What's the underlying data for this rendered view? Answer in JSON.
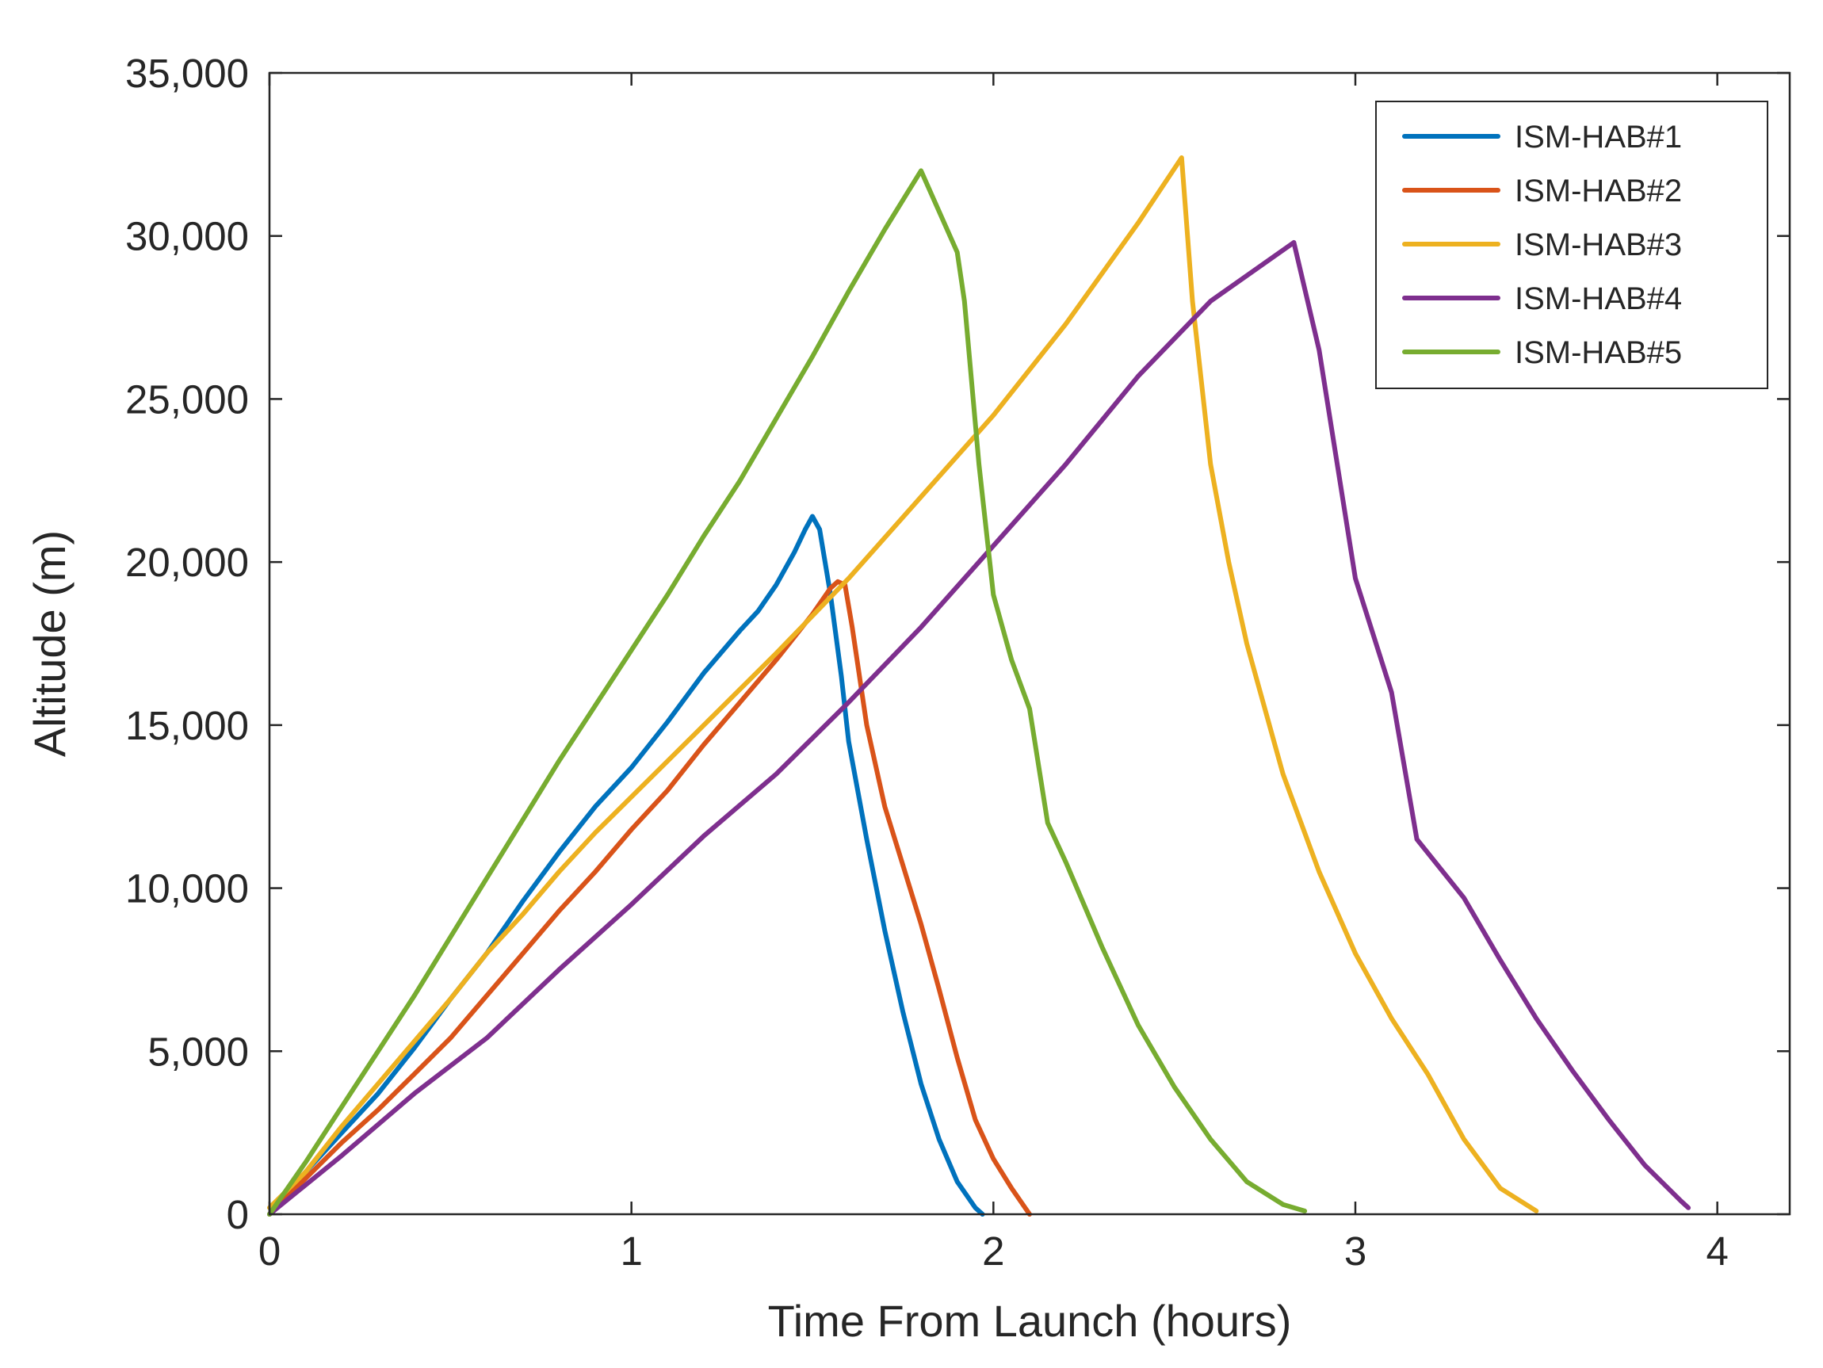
{
  "chart_data": {
    "type": "line",
    "title": "",
    "xlabel": "Time From Launch (hours)",
    "ylabel": "Altitude (m)",
    "xlim": [
      0,
      4.2
    ],
    "ylim": [
      0,
      35000
    ],
    "xticks": [
      0,
      1,
      2,
      3,
      4
    ],
    "xtick_labels": [
      "0",
      "1",
      "2",
      "3",
      "4"
    ],
    "yticks": [
      0,
      5000,
      10000,
      15000,
      20000,
      25000,
      30000,
      35000
    ],
    "ytick_labels": [
      "0",
      "5,000",
      "10,000",
      "15,000",
      "20,000",
      "25,000",
      "30,000",
      "35,000"
    ],
    "grid": false,
    "legend_position": "top-right",
    "series": [
      {
        "name": "ISM-HAB#1",
        "color": "#0072BD",
        "x": [
          0,
          0.1,
          0.2,
          0.3,
          0.4,
          0.5,
          0.6,
          0.7,
          0.8,
          0.9,
          1.0,
          1.1,
          1.2,
          1.3,
          1.35,
          1.4,
          1.45,
          1.48,
          1.5,
          1.52,
          1.55,
          1.58,
          1.6,
          1.65,
          1.7,
          1.75,
          1.8,
          1.85,
          1.9,
          1.95,
          1.97
        ],
        "y": [
          0,
          1300,
          2500,
          3700,
          5100,
          6600,
          8000,
          9600,
          11100,
          12500,
          13700,
          15100,
          16600,
          17900,
          18500,
          19300,
          20300,
          21000,
          21400,
          21000,
          19000,
          16500,
          14500,
          11500,
          8700,
          6200,
          4000,
          2300,
          1000,
          200,
          0
        ]
      },
      {
        "name": "ISM-HAB#2",
        "color": "#D95319",
        "x": [
          0,
          0.1,
          0.2,
          0.3,
          0.4,
          0.5,
          0.6,
          0.7,
          0.8,
          0.9,
          1.0,
          1.1,
          1.2,
          1.3,
          1.4,
          1.5,
          1.55,
          1.57,
          1.59,
          1.61,
          1.65,
          1.7,
          1.75,
          1.8,
          1.85,
          1.9,
          1.95,
          2.0,
          2.05,
          2.1
        ],
        "y": [
          0,
          1100,
          2200,
          3200,
          4300,
          5400,
          6700,
          8000,
          9300,
          10500,
          11800,
          13000,
          14400,
          15700,
          17000,
          18400,
          19200,
          19400,
          19300,
          18000,
          15000,
          12500,
          10700,
          8900,
          6900,
          4800,
          2900,
          1700,
          800,
          0
        ]
      },
      {
        "name": "ISM-HAB#3",
        "color": "#EDB120",
        "x": [
          0,
          0.1,
          0.2,
          0.3,
          0.4,
          0.5,
          0.6,
          0.7,
          0.8,
          0.9,
          1.0,
          1.2,
          1.4,
          1.6,
          1.8,
          2.0,
          2.2,
          2.4,
          2.52,
          2.55,
          2.6,
          2.65,
          2.7,
          2.8,
          2.9,
          3.0,
          3.1,
          3.2,
          3.3,
          3.4,
          3.5
        ],
        "y": [
          200,
          1300,
          2700,
          4000,
          5300,
          6600,
          8000,
          9200,
          10500,
          11700,
          12800,
          15000,
          17200,
          19500,
          22000,
          24500,
          27300,
          30400,
          32400,
          28000,
          23000,
          20000,
          17500,
          13500,
          10500,
          8000,
          6000,
          4300,
          2300,
          800,
          100
        ]
      },
      {
        "name": "ISM-HAB#4",
        "color": "#7E2F8E",
        "x": [
          0,
          0.2,
          0.4,
          0.6,
          0.8,
          1.0,
          1.2,
          1.4,
          1.6,
          1.8,
          2.0,
          2.2,
          2.4,
          2.6,
          2.83,
          2.9,
          3.0,
          3.1,
          3.17,
          3.3,
          3.4,
          3.5,
          3.6,
          3.7,
          3.8,
          3.9,
          3.92
        ],
        "y": [
          0,
          1800,
          3700,
          5400,
          7500,
          9500,
          11600,
          13500,
          15700,
          18000,
          20500,
          23000,
          25700,
          28000,
          29800,
          26500,
          19500,
          16000,
          11500,
          9700,
          7800,
          6000,
          4400,
          2900,
          1500,
          400,
          200
        ]
      },
      {
        "name": "ISM-HAB#5",
        "color": "#77AC30",
        "x": [
          0,
          0.1,
          0.2,
          0.3,
          0.4,
          0.5,
          0.6,
          0.7,
          0.8,
          0.9,
          1.0,
          1.1,
          1.2,
          1.3,
          1.4,
          1.5,
          1.6,
          1.7,
          1.8,
          1.9,
          1.92,
          1.96,
          2.0,
          2.05,
          2.1,
          2.15,
          2.2,
          2.3,
          2.4,
          2.5,
          2.6,
          2.7,
          2.8,
          2.86
        ],
        "y": [
          0,
          1600,
          3300,
          5000,
          6700,
          8500,
          10300,
          12100,
          13900,
          15600,
          17300,
          19000,
          20800,
          22500,
          24400,
          26300,
          28300,
          30200,
          32000,
          29500,
          28000,
          23000,
          19000,
          17000,
          15500,
          12000,
          10800,
          8200,
          5800,
          3900,
          2300,
          1000,
          300,
          100
        ]
      }
    ]
  }
}
